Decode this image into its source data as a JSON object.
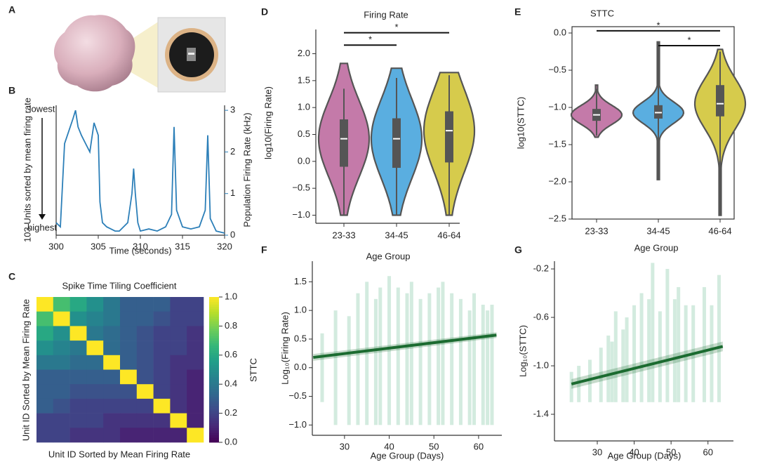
{
  "panel_labels": [
    "A",
    "B",
    "C",
    "D",
    "E",
    "F",
    "G"
  ],
  "chart_data": [
    {
      "type": "line",
      "xlabel": "Time (seconds)",
      "ylabel": "103 Units sorted by mean firing rate",
      "y2label": "Population Firing Rate (kHz)",
      "annotations": [
        "lowest",
        "highest"
      ],
      "x": [
        300,
        300.5,
        301,
        301.5,
        302,
        302.3,
        302.6,
        303,
        303.5,
        304,
        304.5,
        305,
        305.2,
        305.5,
        306,
        306.5,
        307,
        307.5,
        308,
        308.5,
        309,
        309.2,
        309.4,
        309.7,
        310,
        311,
        312,
        313,
        313.7,
        314,
        314.3,
        315,
        316,
        317,
        317.7,
        318,
        318.3,
        319,
        320
      ],
      "series": [
        {
          "color": "#2c7fb8",
          "axis": "y2",
          "values": [
            0.3,
            0.2,
            2.2,
            2.5,
            2.8,
            3.0,
            2.6,
            2.4,
            2.2,
            2.0,
            2.7,
            2.4,
            0.8,
            0.3,
            0.2,
            0.15,
            0.1,
            0.1,
            0.2,
            0.3,
            1.0,
            1.6,
            1.0,
            0.3,
            0.1,
            0.15,
            0.1,
            0.2,
            0.5,
            2.6,
            0.6,
            0.2,
            0.15,
            0.2,
            0.6,
            2.4,
            0.4,
            0.1,
            0.05
          ]
        }
      ],
      "xlim": [
        300,
        320
      ],
      "xticks": [
        300,
        305,
        310,
        315,
        320
      ],
      "y2lim": [
        0,
        3.12
      ],
      "y2ticks": [
        0,
        1,
        2,
        3
      ]
    },
    {
      "type": "heatmap",
      "title": "Spike Time Tiling Coefficient",
      "xlabel": "Unit ID Sorted by Mean Firing Rate",
      "ylabel": "Unit ID Sorted by Mean Firing Rate",
      "colorbar_label": "STTC",
      "colormap": "viridis",
      "clim": [
        0,
        1
      ],
      "cticks": [
        {
          "value": 0,
          "label": "0.0"
        },
        0.2,
        0.4,
        0.6,
        0.8,
        {
          "value": 1,
          "label": "1.0"
        }
      ],
      "matrix": [
        [
          1.0,
          0.7,
          0.6,
          0.5,
          0.4,
          0.3,
          0.3,
          0.3,
          0.2,
          0.2
        ],
        [
          0.7,
          1.0,
          0.5,
          0.45,
          0.4,
          0.3,
          0.3,
          0.25,
          0.2,
          0.2
        ],
        [
          0.6,
          0.5,
          1.0,
          0.4,
          0.35,
          0.3,
          0.25,
          0.2,
          0.2,
          0.15
        ],
        [
          0.5,
          0.45,
          0.4,
          1.0,
          0.35,
          0.3,
          0.25,
          0.2,
          0.2,
          0.15
        ],
        [
          0.4,
          0.4,
          0.35,
          0.35,
          1.0,
          0.3,
          0.25,
          0.2,
          0.15,
          0.15
        ],
        [
          0.3,
          0.3,
          0.3,
          0.3,
          0.3,
          1.0,
          0.25,
          0.2,
          0.15,
          0.1
        ],
        [
          0.3,
          0.3,
          0.25,
          0.25,
          0.25,
          0.25,
          1.0,
          0.2,
          0.15,
          0.1
        ],
        [
          0.3,
          0.25,
          0.2,
          0.2,
          0.2,
          0.2,
          0.2,
          1.0,
          0.15,
          0.1
        ],
        [
          0.2,
          0.2,
          0.2,
          0.2,
          0.15,
          0.15,
          0.15,
          0.15,
          1.0,
          0.1
        ],
        [
          0.2,
          0.2,
          0.15,
          0.15,
          0.15,
          0.1,
          0.1,
          0.1,
          0.1,
          1.0
        ]
      ]
    },
    {
      "type": "violin",
      "title": "Firing Rate",
      "xlabel": "Age Group",
      "ylabel": "log10(Firing Rate)",
      "frame": "open",
      "categories": [
        "23-33",
        "34-45",
        "46-64"
      ],
      "colors": [
        "#c47aa9",
        "#5aaee0",
        "#d6cb4c"
      ],
      "edge_color": "#555555",
      "violin_min": [
        -1.0,
        -1.0,
        -1.0
      ],
      "violin_max": [
        1.82,
        1.73,
        1.65
      ],
      "whisker_low": [
        -1.0,
        -1.0,
        -1.0
      ],
      "q1": [
        -0.1,
        -0.12,
        -0.02
      ],
      "median": [
        0.42,
        0.42,
        0.57
      ],
      "q3": [
        0.78,
        0.8,
        0.93
      ],
      "whisker_high": [
        1.35,
        1.55,
        1.6
      ],
      "ylim": [
        -1.15,
        2.45
      ],
      "yticks": [
        {
          "value": -1.0,
          "label": "−1.0"
        },
        {
          "value": -0.5,
          "label": "−0.5"
        },
        {
          "value": 0,
          "label": "0.0"
        },
        0.5,
        {
          "value": 1,
          "label": "1.0"
        },
        1.5,
        {
          "value": 2,
          "label": "2.0"
        }
      ],
      "significance": [
        {
          "from": 0,
          "to": 1,
          "y": 2.16,
          "text": "*"
        },
        {
          "from": 0,
          "to": 2,
          "y": 2.39,
          "text": "*"
        }
      ]
    },
    {
      "type": "violin",
      "title": "STTC",
      "xlabel": "Age Group",
      "ylabel": "log10(STTC)",
      "frame": "box",
      "categories": [
        "23-33",
        "34-45",
        "46-64"
      ],
      "colors": [
        "#c47aa9",
        "#5aaee0",
        "#d6cb4c"
      ],
      "edge_color": "#555555",
      "violin_min": [
        -1.4,
        -1.97,
        -2.45
      ],
      "violin_max": [
        -0.7,
        -0.12,
        -0.22
      ],
      "whisker_low": [
        -1.38,
        -1.97,
        -2.45
      ],
      "q1": [
        -1.18,
        -1.15,
        -1.12
      ],
      "median": [
        -1.1,
        -1.07,
        -0.95
      ],
      "q3": [
        -1.02,
        -0.97,
        -0.7
      ],
      "whisker_high": [
        -0.75,
        -0.13,
        -0.25
      ],
      "ylim": [
        -2.5,
        0.085
      ],
      "yticks": [
        {
          "value": -2.5,
          "label": "−2.5"
        },
        {
          "value": -2.0,
          "label": "−2.0"
        },
        {
          "value": -1.5,
          "label": "−1.5"
        },
        {
          "value": -1.0,
          "label": "−1.0"
        },
        {
          "value": -0.5,
          "label": "−0.5"
        },
        {
          "value": 0,
          "label": "0.0"
        }
      ],
      "significance": [
        {
          "from": 0,
          "to": 2,
          "y": 0.03,
          "text": "*"
        },
        {
          "from": 1,
          "to": 2,
          "y": -0.17,
          "text": "*"
        }
      ]
    },
    {
      "type": "scatter",
      "xlabel": "Age Group (Days)",
      "ylabel": "Log₁₀(Firing Rate)",
      "frame": "open",
      "xlim": [
        22.8,
        65.2
      ],
      "xticks": [
        30,
        40,
        50,
        60
      ],
      "ylim": [
        -1.18,
        1.86
      ],
      "yticks": [
        {
          "value": -1.0,
          "label": "−1.0"
        },
        {
          "value": -0.5,
          "label": "−0.5"
        },
        {
          "value": 0,
          "label": "0.0"
        },
        0.5,
        {
          "value": 1,
          "label": "1.0"
        },
        1.5
      ],
      "columns": {
        "color": "#9dd3b8",
        "x": [
          25,
          28,
          31,
          33,
          35,
          37,
          38,
          40,
          42,
          44,
          45,
          47,
          49,
          51,
          52,
          54,
          56,
          58,
          59,
          61,
          62,
          63
        ],
        "y_min": [
          -0.6,
          -1.0,
          -1.0,
          -1.0,
          -1.0,
          -1.0,
          -1.0,
          -1.0,
          -1.0,
          -1.0,
          -1.0,
          -1.0,
          -1.0,
          -1.0,
          -1.0,
          -1.0,
          -1.0,
          -1.0,
          -1.0,
          -1.0,
          -1.0,
          -1.0
        ],
        "y_max": [
          0.6,
          1.0,
          0.9,
          1.3,
          1.5,
          1.2,
          1.4,
          1.6,
          1.4,
          1.3,
          1.5,
          1.2,
          1.3,
          1.4,
          1.5,
          1.3,
          1.2,
          1.0,
          1.3,
          1.1,
          1.0,
          1.1
        ]
      },
      "fit": {
        "color": "#1b6b30",
        "x": [
          23,
          64
        ],
        "y": [
          0.18,
          0.57
        ],
        "ci_low": [
          0.12,
          0.52
        ],
        "ci_high": [
          0.24,
          0.62
        ]
      }
    },
    {
      "type": "scatter",
      "xlabel": "Age Group (Days)",
      "ylabel": "Log₁₀(STTC)",
      "frame": "open",
      "xlim": [
        18.4,
        66.9
      ],
      "xticks": [
        30,
        40,
        50,
        60
      ],
      "ylim": [
        -1.62,
        -0.136
      ],
      "yticks": [
        -1.4,
        {
          "value": -1.0,
          "label": "-1.0"
        },
        -0.6,
        -0.2
      ],
      "columns": {
        "color": "#9dd3b8",
        "x": [
          23,
          25,
          28,
          31,
          33,
          34,
          35,
          37,
          38,
          40,
          42,
          44,
          45,
          47,
          49,
          51,
          52,
          54,
          56,
          59,
          61,
          63
        ],
        "y_min": [
          -1.3,
          -1.3,
          -1.3,
          -1.3,
          -1.3,
          -1.3,
          -1.3,
          -1.3,
          -1.3,
          -1.3,
          -1.3,
          -1.3,
          -1.3,
          -1.3,
          -1.3,
          -1.3,
          -1.3,
          -1.3,
          -1.3,
          -1.3,
          -1.3,
          -1.3
        ],
        "y_max": [
          -1.05,
          -1.0,
          -0.95,
          -0.85,
          -0.75,
          -0.8,
          -0.55,
          -0.7,
          -0.6,
          -0.5,
          -0.4,
          -0.45,
          -0.15,
          -0.55,
          -0.2,
          -0.45,
          -0.35,
          -0.5,
          -0.5,
          -0.35,
          -0.5,
          -0.25
        ]
      },
      "fit": {
        "color": "#1b6b30",
        "x": [
          23,
          64
        ],
        "y": [
          -1.15,
          -0.84
        ],
        "ci_low": [
          -1.19,
          -0.88
        ],
        "ci_high": [
          -1.11,
          -0.8
        ]
      }
    }
  ]
}
